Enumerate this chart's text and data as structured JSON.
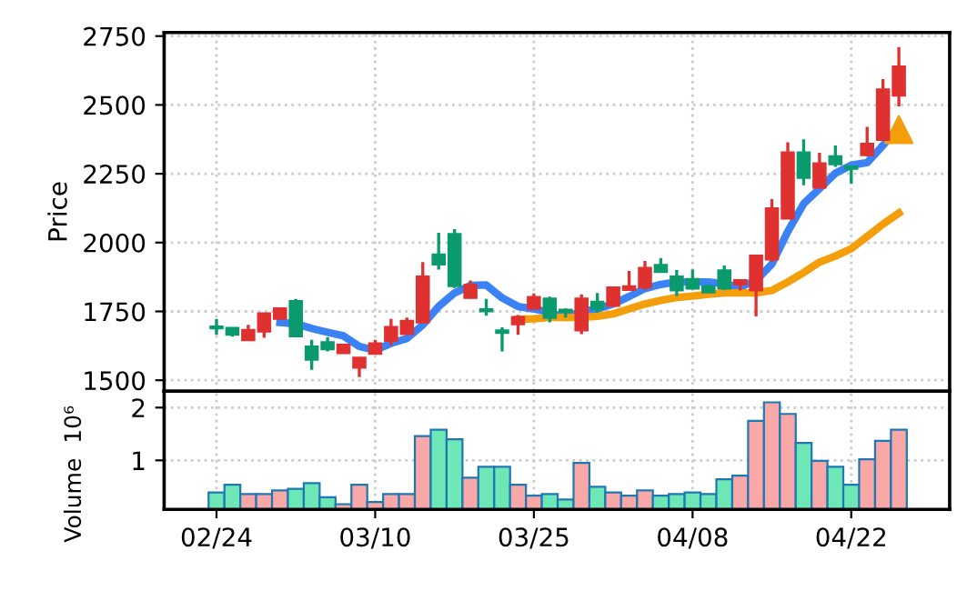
{
  "chart_data": [
    {
      "type": "candlestick",
      "ylabel": "Price",
      "ylim": [
        1460,
        2763
      ],
      "yticks": [
        1500,
        1750,
        2000,
        2250,
        2500,
        2750
      ],
      "grid": true,
      "tick_labels": "y",
      "ohlc": [
        [
          1693,
          1723,
          1665,
          1690
        ],
        [
          1688,
          1690,
          1658,
          1667
        ],
        [
          1647,
          1701,
          1645,
          1681
        ],
        [
          1679,
          1741,
          1654,
          1741
        ],
        [
          1725,
          1763,
          1721,
          1759
        ],
        [
          1786,
          1795,
          1658,
          1661
        ],
        [
          1621,
          1647,
          1538,
          1576
        ],
        [
          1636,
          1656,
          1605,
          1614
        ],
        [
          1600,
          1632,
          1598,
          1627
        ],
        [
          1547,
          1580,
          1511,
          1580
        ],
        [
          1598,
          1647,
          1594,
          1632
        ],
        [
          1645,
          1723,
          1627,
          1692
        ],
        [
          1670,
          1728,
          1665,
          1714
        ],
        [
          1712,
          1929,
          1708,
          1875
        ],
        [
          1955,
          2036,
          1902,
          1922
        ],
        [
          2029,
          2049,
          1835,
          1844
        ],
        [
          1801,
          1862,
          1797,
          1844
        ],
        [
          1756,
          1795,
          1734,
          1752
        ],
        [
          1679,
          1692,
          1605,
          1674
        ],
        [
          1705,
          1737,
          1665,
          1728
        ],
        [
          1761,
          1815,
          1757,
          1801
        ],
        [
          1795,
          1804,
          1710,
          1728
        ],
        [
          1754,
          1761,
          1728,
          1750
        ],
        [
          1683,
          1812,
          1667,
          1795
        ],
        [
          1783,
          1817,
          1746,
          1761
        ],
        [
          1772,
          1839,
          1768,
          1835
        ],
        [
          1830,
          1897,
          1824,
          1839
        ],
        [
          1839,
          1933,
          1828,
          1906
        ],
        [
          1917,
          1944,
          1893,
          1895
        ],
        [
          1875,
          1900,
          1806,
          1828
        ],
        [
          1866,
          1902,
          1830,
          1835
        ],
        [
          1839,
          1848,
          1817,
          1821
        ],
        [
          1897,
          1917,
          1828,
          1835
        ],
        [
          1850,
          1866,
          1826,
          1862
        ],
        [
          1828,
          1951,
          1732,
          1951
        ],
        [
          1940,
          2158,
          1929,
          2123
        ],
        [
          2089,
          2364,
          2085,
          2326
        ],
        [
          2326,
          2375,
          2208,
          2237
        ],
        [
          2201,
          2326,
          2196,
          2286
        ],
        [
          2312,
          2353,
          2275,
          2286
        ],
        [
          2275,
          2277,
          2214,
          2270
        ],
        [
          2319,
          2420,
          2312,
          2357
        ],
        [
          2375,
          2594,
          2375,
          2554
        ],
        [
          2536,
          2710,
          2495,
          2638
        ]
      ],
      "colors": [
        "#0b9a6d",
        "#0b9a6d",
        "#e03131",
        "#e03131",
        "#e03131",
        "#0b9a6d",
        "#0b9a6d",
        "#0b9a6d",
        "#e03131",
        "#e03131",
        "#e03131",
        "#e03131",
        "#e03131",
        "#e03131",
        "#0b9a6d",
        "#0b9a6d",
        "#e03131",
        "#0b9a6d",
        "#0b9a6d",
        "#e03131",
        "#e03131",
        "#0b9a6d",
        "#0b9a6d",
        "#e03131",
        "#0b9a6d",
        "#e03131",
        "#e03131",
        "#e03131",
        "#0b9a6d",
        "#0b9a6d",
        "#0b9a6d",
        "#0b9a6d",
        "#0b9a6d",
        "#e03131",
        "#e03131",
        "#e03131",
        "#e03131",
        "#0b9a6d",
        "#e03131",
        "#0b9a6d",
        "#0b9a6d",
        "#e03131",
        "#e03131",
        "#e03131"
      ],
      "series": [
        {
          "type": "line",
          "color": "#3b82f6",
          "values": [
            null,
            null,
            null,
            null,
            1710,
            1705,
            1688,
            1674,
            1661,
            1623,
            1609,
            1634,
            1652,
            1701,
            1768,
            1817,
            1844,
            1846,
            1799,
            1768,
            1759,
            1746,
            1728,
            1750,
            1759,
            1777,
            1804,
            1833,
            1848,
            1857,
            1857,
            1857,
            1850,
            1839,
            1862,
            1922,
            2040,
            2141,
            2196,
            2252,
            2281,
            2290,
            2353,
            2420
          ]
        },
        {
          "type": "line",
          "color": "#f59e0b",
          "values": [
            null,
            null,
            null,
            null,
            null,
            null,
            null,
            null,
            null,
            null,
            null,
            null,
            null,
            null,
            null,
            null,
            null,
            null,
            null,
            1721,
            1723,
            1728,
            1728,
            1728,
            1732,
            1741,
            1759,
            1777,
            1790,
            1801,
            1806,
            1812,
            1817,
            1817,
            1817,
            1826,
            1857,
            1891,
            1929,
            1951,
            1978,
            2022,
            2067,
            2107
          ]
        },
        {
          "type": "scatter",
          "marker": "triangle",
          "color": "#f59e0b",
          "values": [
            null,
            null,
            null,
            null,
            null,
            null,
            null,
            null,
            null,
            null,
            null,
            null,
            null,
            null,
            null,
            null,
            null,
            null,
            null,
            null,
            null,
            null,
            null,
            null,
            null,
            null,
            null,
            null,
            null,
            null,
            null,
            null,
            null,
            null,
            null,
            null,
            null,
            null,
            null,
            null,
            null,
            null,
            null,
            2410
          ]
        }
      ]
    },
    {
      "type": "bar",
      "ylabel": "Volume  10⁶",
      "ylim": [
        0.07,
        2.31
      ],
      "yticks": [
        1,
        2
      ],
      "grid": true,
      "categories": [
        "02/24",
        null,
        null,
        null,
        null,
        null,
        null,
        null,
        null,
        null,
        "03/10",
        null,
        null,
        null,
        null,
        null,
        null,
        null,
        null,
        null,
        "03/25",
        null,
        null,
        null,
        null,
        null,
        null,
        null,
        null,
        null,
        "04/08",
        null,
        null,
        null,
        null,
        null,
        null,
        null,
        null,
        null,
        "04/22",
        null,
        null,
        null
      ],
      "values": [
        0.39,
        0.54,
        0.36,
        0.36,
        0.43,
        0.46,
        0.57,
        0.3,
        0.17,
        0.54,
        0.21,
        0.36,
        0.36,
        1.46,
        1.58,
        1.4,
        0.67,
        0.88,
        0.88,
        0.54,
        0.33,
        0.36,
        0.26,
        0.95,
        0.5,
        0.39,
        0.33,
        0.43,
        0.33,
        0.36,
        0.39,
        0.36,
        0.64,
        0.71,
        1.75,
        2.1,
        1.88,
        1.33,
        0.99,
        0.88,
        0.54,
        1.02,
        1.37,
        1.58
      ],
      "colors": [
        "#6ee7b7",
        "#6ee7b7",
        "#f9a8a8",
        "#f9a8a8",
        "#f9a8a8",
        "#6ee7b7",
        "#6ee7b7",
        "#6ee7b7",
        "#f9a8a8",
        "#f9a8a8",
        "#f9a8a8",
        "#f9a8a8",
        "#f9a8a8",
        "#f9a8a8",
        "#6ee7b7",
        "#6ee7b7",
        "#f9a8a8",
        "#6ee7b7",
        "#6ee7b7",
        "#f9a8a8",
        "#f9a8a8",
        "#6ee7b7",
        "#6ee7b7",
        "#f9a8a8",
        "#6ee7b7",
        "#f9a8a8",
        "#f9a8a8",
        "#f9a8a8",
        "#6ee7b7",
        "#6ee7b7",
        "#6ee7b7",
        "#6ee7b7",
        "#6ee7b7",
        "#f9a8a8",
        "#f9a8a8",
        "#f9a8a8",
        "#f9a8a8",
        "#6ee7b7",
        "#f9a8a8",
        "#6ee7b7",
        "#6ee7b7",
        "#f9a8a8",
        "#f9a8a8",
        "#f9a8a8"
      ]
    }
  ]
}
